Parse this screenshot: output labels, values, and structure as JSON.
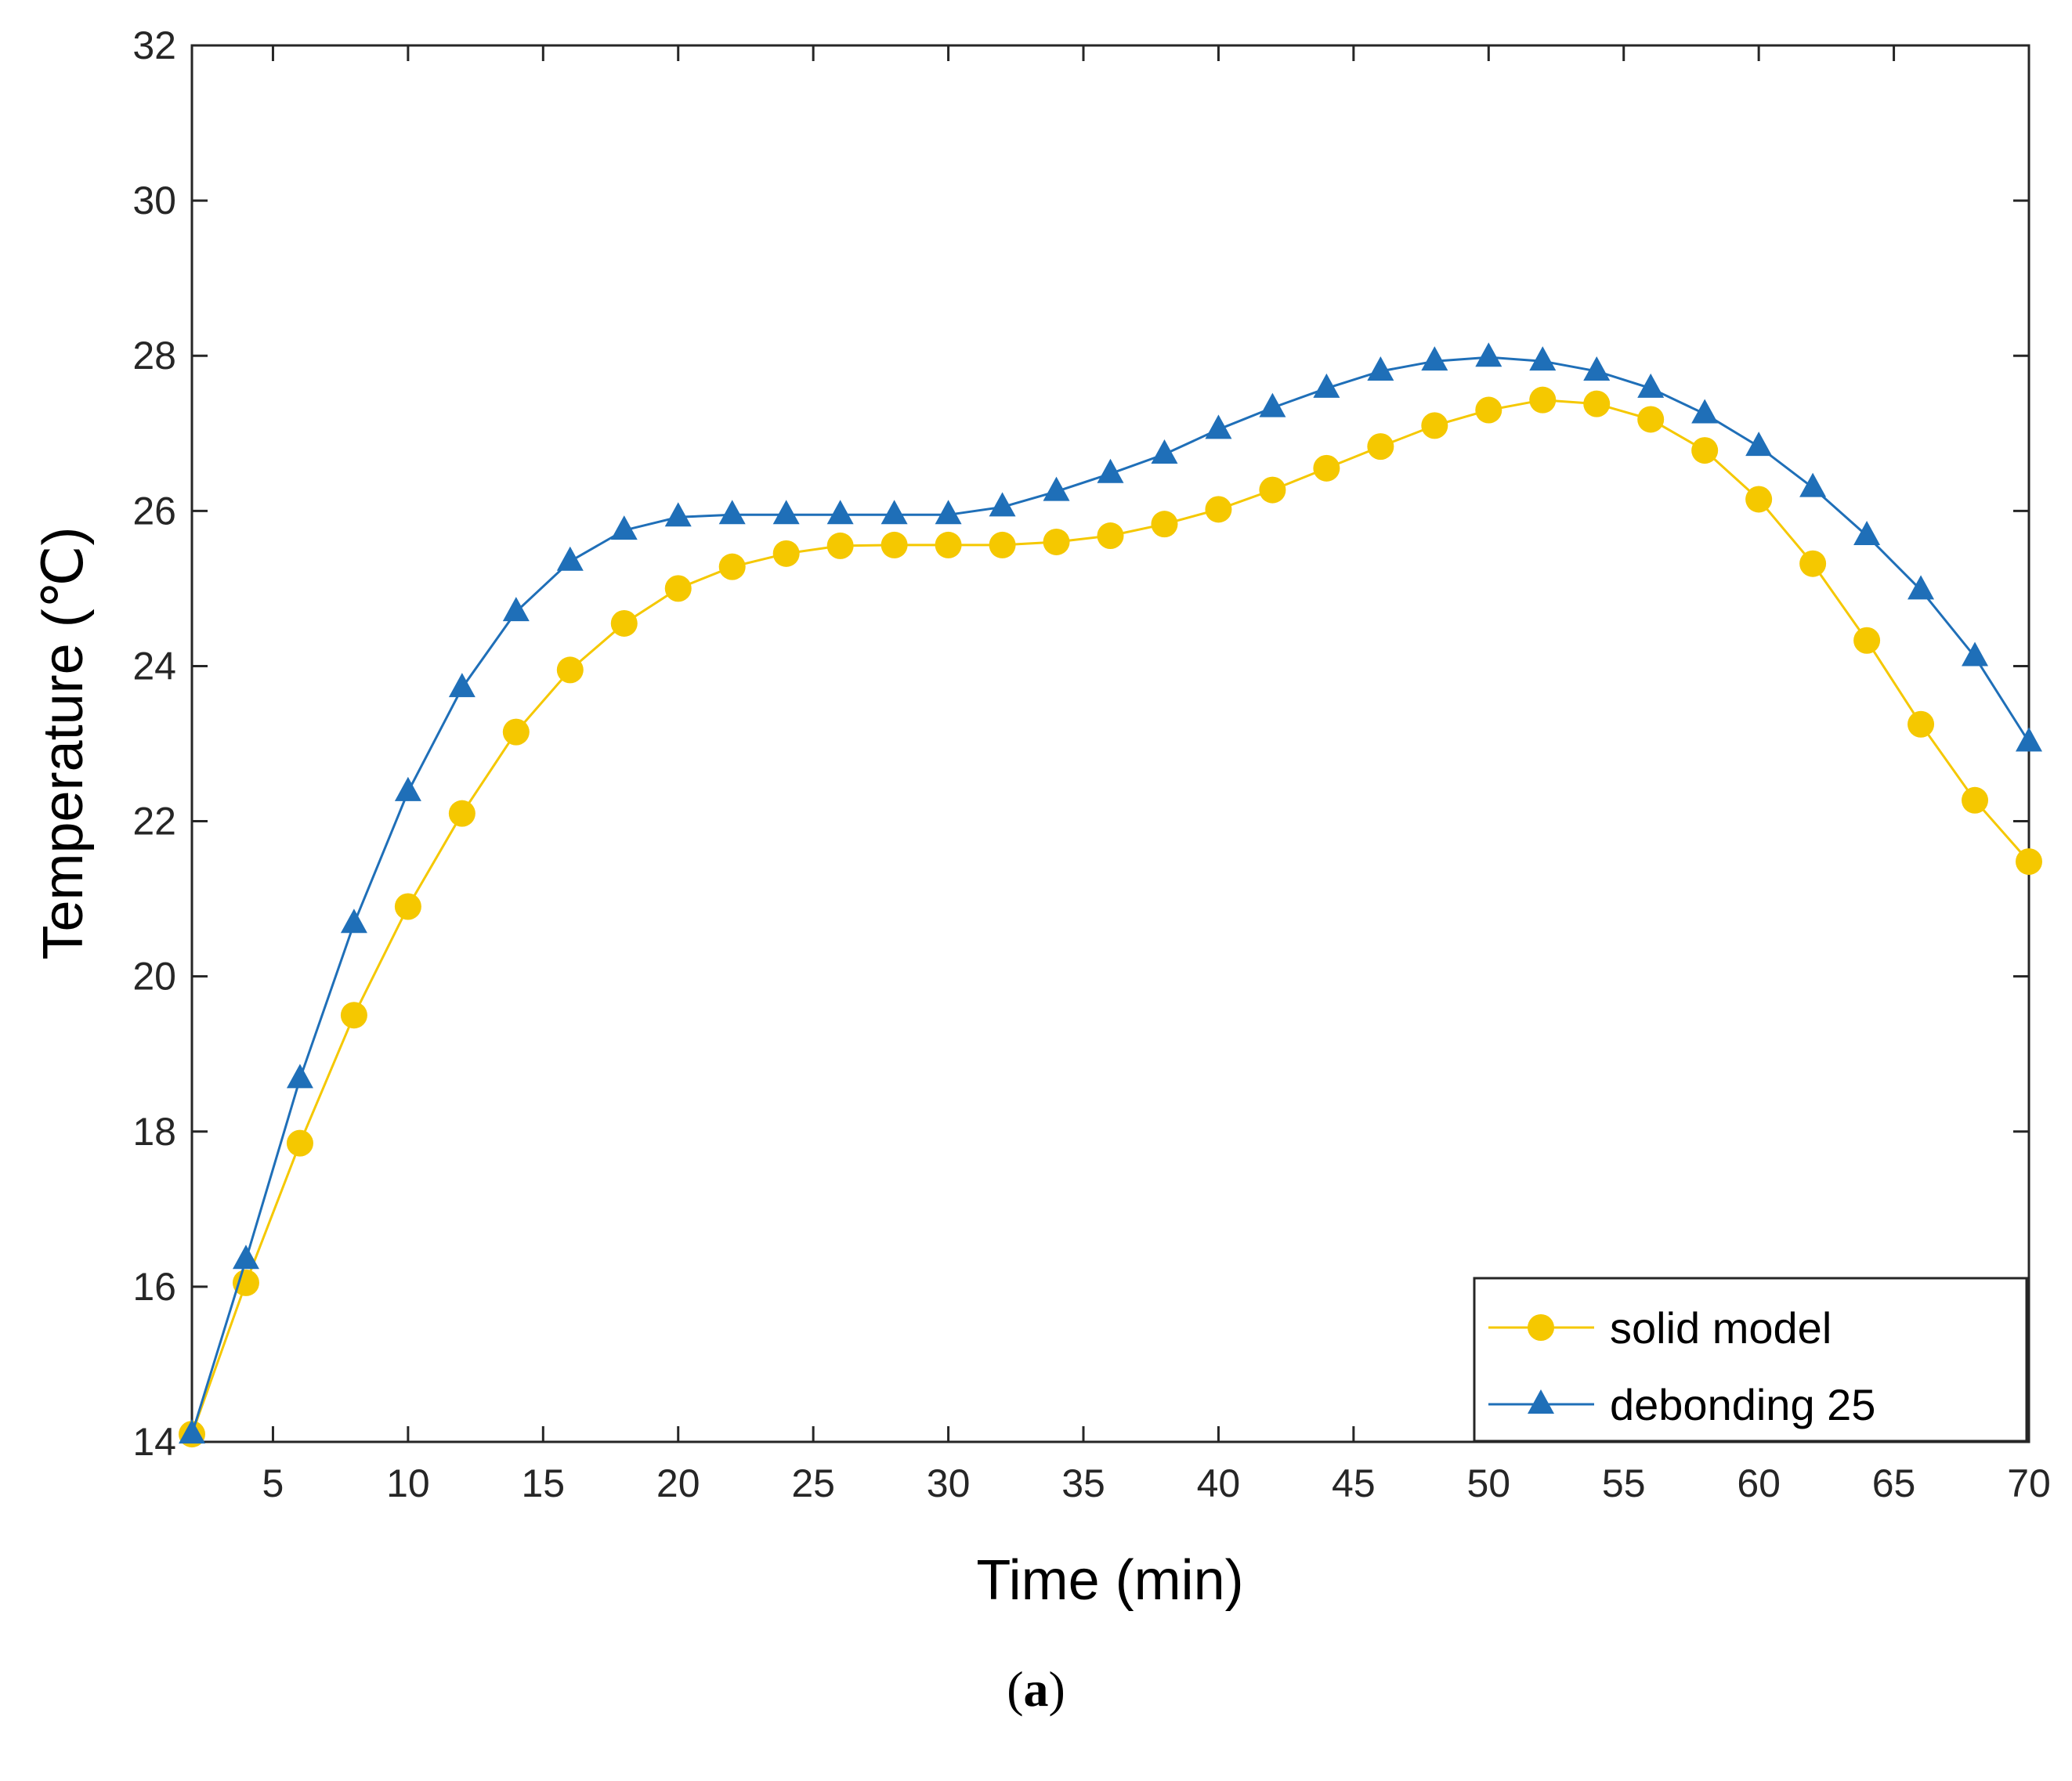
{
  "colors": {
    "solid": "#f5c800",
    "debond": "#1f6fb8",
    "axis": "#262626"
  },
  "chart_data": {
    "type": "line",
    "title": "",
    "xlabel": "Time (min)",
    "ylabel": "Temperature (℃)",
    "xlim": [
      2,
      70
    ],
    "ylim": [
      14,
      32
    ],
    "xticks": [
      5,
      10,
      15,
      20,
      25,
      30,
      35,
      40,
      45,
      50,
      55,
      60,
      65,
      70
    ],
    "yticks": [
      14,
      16,
      18,
      20,
      22,
      24,
      26,
      28,
      30,
      32
    ],
    "x": [
      2,
      4,
      6,
      8,
      10,
      12,
      14,
      16,
      18,
      20,
      22,
      24,
      26,
      28,
      30,
      32,
      34,
      36,
      38,
      40,
      42,
      44,
      46,
      48,
      50,
      52,
      54,
      56,
      58,
      60,
      62,
      64,
      66,
      68,
      70
    ],
    "series": [
      {
        "name": "solid model",
        "marker": "circle",
        "values": [
          14.1,
          16.05,
          17.85,
          19.5,
          20.9,
          22.1,
          23.15,
          23.95,
          24.55,
          25.0,
          25.28,
          25.45,
          25.55,
          25.56,
          25.56,
          25.56,
          25.6,
          25.68,
          25.83,
          26.02,
          26.27,
          26.55,
          26.83,
          27.1,
          27.3,
          27.43,
          27.38,
          27.18,
          26.78,
          26.15,
          25.32,
          24.33,
          23.25,
          22.27,
          21.48
        ]
      },
      {
        "name": "debonding 25",
        "marker": "triangle",
        "values": [
          14.1,
          16.35,
          18.68,
          20.68,
          22.38,
          23.72,
          24.7,
          25.35,
          25.75,
          25.92,
          25.95,
          25.95,
          25.95,
          25.95,
          25.95,
          26.05,
          26.25,
          26.48,
          26.73,
          27.05,
          27.33,
          27.58,
          27.8,
          27.93,
          27.98,
          27.93,
          27.8,
          27.58,
          27.25,
          26.83,
          26.3,
          25.68,
          24.98,
          24.12,
          23.02
        ]
      }
    ],
    "legend": {
      "position": "bottom-right",
      "entries": [
        "solid model",
        "debonding 25"
      ]
    }
  },
  "caption": {
    "open": "(",
    "label": "a",
    "close": ")"
  }
}
